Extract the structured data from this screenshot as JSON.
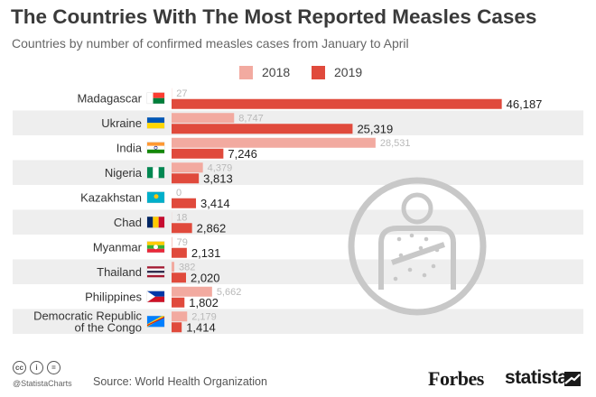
{
  "title": "The Countries With The Most Reported Measles Cases",
  "subtitle": "Countries by number of confirmed measles cases from January to April",
  "colors": {
    "series_2018": "#f2aaa0",
    "series_2019": "#e04a3c",
    "label_2018": "#b9b9b9",
    "label_2019": "#222222",
    "band": "#eeeeee",
    "icon": "#c8c8c8"
  },
  "chart_data": {
    "type": "bar",
    "orientation": "horizontal",
    "title": "The Countries With The Most Reported Measles Cases",
    "subtitle": "Countries by number of confirmed measles cases from January to April",
    "categories": [
      "Madagascar",
      "Ukraine",
      "India",
      "Nigeria",
      "Kazakhstan",
      "Chad",
      "Myanmar",
      "Thailand",
      "Philippines",
      "Democratic Republic of the Congo"
    ],
    "category_lines": [
      [
        "Madagascar"
      ],
      [
        "Ukraine"
      ],
      [
        "India"
      ],
      [
        "Nigeria"
      ],
      [
        "Kazakhstan"
      ],
      [
        "Chad"
      ],
      [
        "Myanmar"
      ],
      [
        "Thailand"
      ],
      [
        "Philippines"
      ],
      [
        "Democratic Republic",
        "of the Congo"
      ]
    ],
    "series": [
      {
        "name": "2018",
        "values": [
          27,
          8747,
          28531,
          4379,
          0,
          18,
          79,
          382,
          5662,
          2179
        ],
        "labels": [
          "27",
          "8,747",
          "28,531",
          "4,379",
          "0",
          "18",
          "79",
          "382",
          "5,662",
          "2,179"
        ]
      },
      {
        "name": "2019",
        "values": [
          46187,
          25319,
          7246,
          3813,
          3414,
          2862,
          2131,
          2020,
          1802,
          1414
        ],
        "labels": [
          "46,187",
          "25,319",
          "7,246",
          "3,813",
          "3,414",
          "2,862",
          "2,131",
          "2,020",
          "1,802",
          "1,414"
        ]
      }
    ],
    "xlim": [
      0,
      48000
    ],
    "legend_position": "top-center",
    "grid": false
  },
  "legend": {
    "items": [
      "2018",
      "2019"
    ]
  },
  "footer": {
    "cc_icons": [
      "cc",
      "i",
      "="
    ],
    "handle": "@StatistaCharts",
    "source": "Source: World Health Organization",
    "forbes": "Forbes",
    "statista": "statista"
  }
}
